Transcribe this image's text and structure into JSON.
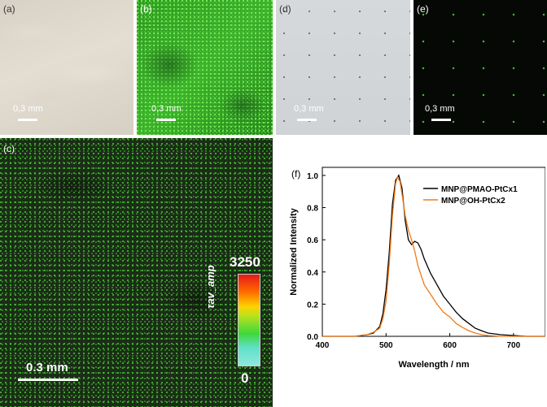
{
  "panels": {
    "a": {
      "label": "(a)",
      "scalebar": "0,3 mm"
    },
    "b": {
      "label": "(b)",
      "scalebar": "0,3 mm"
    },
    "c": {
      "label": "(c)",
      "scalebar": "0.3 mm",
      "colorbar": {
        "title": "τav_amp",
        "max": "3250",
        "min": "0"
      }
    },
    "d": {
      "label": "(d)",
      "scalebar": "0,3 mm"
    },
    "e": {
      "label": "(e)",
      "scalebar": "0,3 mm"
    },
    "f": {
      "label": "(f)"
    }
  },
  "chart_data": {
    "type": "line",
    "xlabel": "Wavelength / nm",
    "ylabel": "Normalized Intensity",
    "xlim": [
      400,
      750
    ],
    "ylim": [
      0.0,
      1.05
    ],
    "xticks": [
      400,
      500,
      600,
      700
    ],
    "yticks": [
      0.0,
      0.2,
      0.4,
      0.6,
      0.8,
      1.0
    ],
    "legend": "top-right",
    "series": [
      {
        "name": "MNP@PMAO-PtCx1",
        "color": "#000000",
        "x": [
          400,
          450,
          470,
          480,
          490,
          495,
          500,
          505,
          510,
          515,
          520,
          525,
          530,
          535,
          540,
          545,
          550,
          555,
          560,
          570,
          580,
          590,
          600,
          610,
          620,
          630,
          640,
          650,
          660,
          680,
          700,
          720,
          750
        ],
        "y": [
          0.0,
          0.0,
          0.01,
          0.02,
          0.06,
          0.14,
          0.29,
          0.52,
          0.82,
          0.97,
          1.0,
          0.92,
          0.72,
          0.6,
          0.57,
          0.59,
          0.58,
          0.54,
          0.48,
          0.39,
          0.32,
          0.25,
          0.2,
          0.15,
          0.11,
          0.08,
          0.05,
          0.035,
          0.02,
          0.01,
          0.005,
          0.0,
          0.0
        ]
      },
      {
        "name": "MNP@OH-PtCx2",
        "color": "#f07a1a",
        "x": [
          400,
          450,
          470,
          480,
          490,
          495,
          500,
          505,
          510,
          515,
          518,
          522,
          526,
          530,
          535,
          540,
          545,
          550,
          555,
          560,
          570,
          580,
          590,
          600,
          610,
          620,
          630,
          640,
          650,
          660,
          680,
          700,
          750
        ],
        "y": [
          0.0,
          0.0,
          0.01,
          0.025,
          0.05,
          0.11,
          0.22,
          0.45,
          0.75,
          0.95,
          0.99,
          0.96,
          0.86,
          0.75,
          0.66,
          0.6,
          0.53,
          0.44,
          0.38,
          0.32,
          0.26,
          0.2,
          0.15,
          0.12,
          0.08,
          0.055,
          0.035,
          0.02,
          0.01,
          0.005,
          0.0,
          0.0,
          0.0
        ]
      }
    ]
  }
}
